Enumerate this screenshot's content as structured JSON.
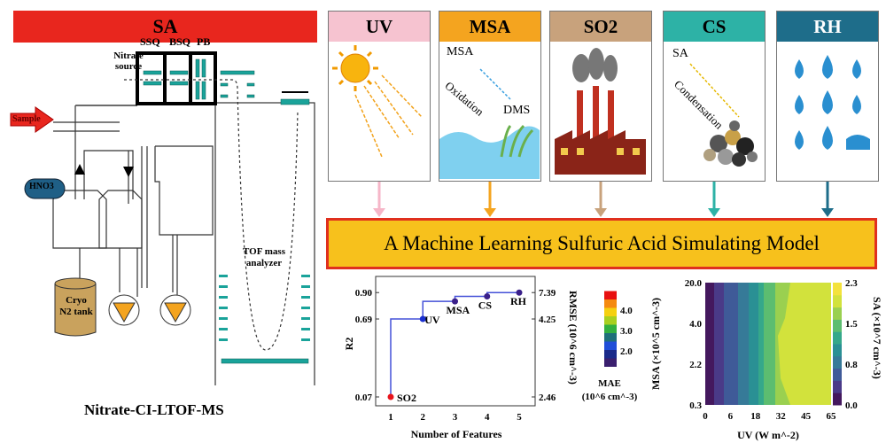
{
  "left": {
    "header": "SA",
    "labels": {
      "nitrate_source": "Nitrate source",
      "ssq": "SSQ",
      "bsq": "BSQ",
      "pb": "PB",
      "sample": "Sample",
      "hno3": "HNO3",
      "tof": "TOF mass analyzer",
      "cryo": "Cryo N2 tank"
    },
    "caption": "Nitrate-CI-LTOF-MS"
  },
  "panels": [
    {
      "title": "UV",
      "color": "#f6c3d0"
    },
    {
      "title": "MSA",
      "color": "#f4a41f",
      "labels": [
        "MSA",
        "Oxidation",
        "DMS"
      ]
    },
    {
      "title": "SO2",
      "color": "#c8a27c"
    },
    {
      "title": "CS",
      "color": "#2db2a6",
      "labels": [
        "SA",
        "Condensation"
      ]
    },
    {
      "title": "RH",
      "color": "#1e6d8a"
    }
  ],
  "model_title": "A Machine Learning Sulfuric Acid Simulating Model",
  "chart_data": [
    {
      "type": "line",
      "xlabel": "Number of Features",
      "ylabel": "R2",
      "y2label": "RMSE (10^6 cm^-3)",
      "x": [
        1,
        2,
        3,
        4,
        5
      ],
      "point_labels": [
        "SO2",
        "UV",
        "MSA",
        "CS",
        "RH"
      ],
      "r2": [
        0.07,
        0.69,
        0.83,
        0.87,
        0.9
      ],
      "mae_colors": [
        "#e8141c",
        "#1a2fd0",
        "#3a1f8a",
        "#3a1f8a",
        "#3a1f8a"
      ],
      "yticks": [
        "0.07",
        "0.69",
        "0.90"
      ],
      "y2ticks": [
        "7.39",
        "4.25",
        "2.46"
      ],
      "xticks": [
        "1",
        "2",
        "3",
        "4",
        "5"
      ],
      "colorbar": {
        "label": "MAE",
        "unit": "(10^6 cm^-3)",
        "ticks": [
          "4.0",
          "3.0",
          "2.0"
        ]
      }
    },
    {
      "type": "heatmap",
      "xlabel": "UV (W m^-2)",
      "ylabel": "MSA (×10^5 cm^-3)",
      "xticks": [
        "0",
        "6",
        "18",
        "32",
        "45",
        "65"
      ],
      "yticks": [
        "20.0",
        "4.0",
        "2.2",
        "0.3"
      ],
      "colorbar": {
        "label": "SA (×10^7 cm^-3)",
        "ticks": [
          "2.3",
          "1.5",
          "0.8",
          "0.0"
        ]
      }
    }
  ]
}
